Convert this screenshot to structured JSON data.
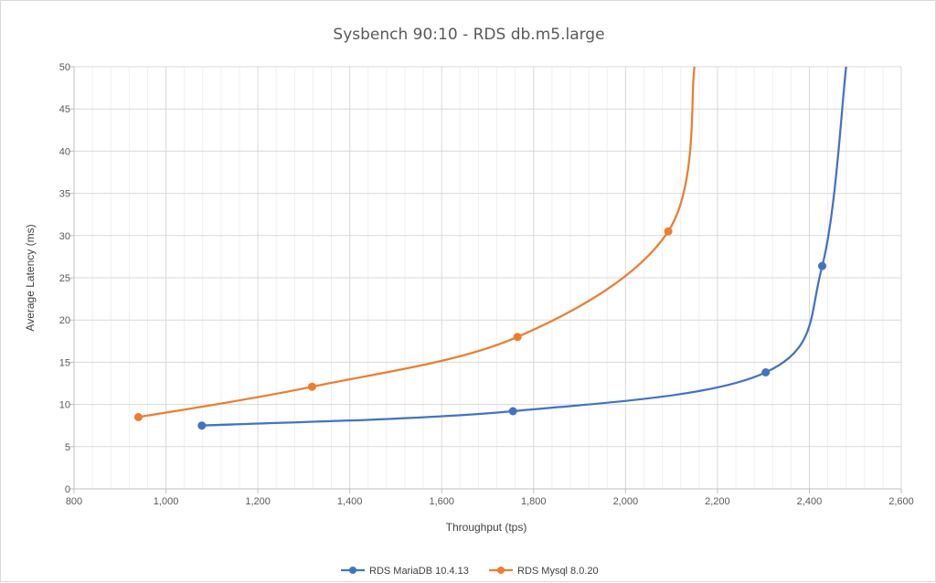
{
  "chart_data": {
    "type": "scatter",
    "title": "Sysbench 90:10 - RDS db.m5.large",
    "xlabel": "Throughput (tps)",
    "ylabel": "Average Latency (ms)",
    "xlim": [
      800,
      2600
    ],
    "ylim": [
      0,
      50
    ],
    "xticks": [
      "800",
      "1,000",
      "1,200",
      "1,400",
      "1,600",
      "1,800",
      "2,000",
      "2,200",
      "2,400",
      "2,600"
    ],
    "yticks": [
      "0",
      "5",
      "10",
      "15",
      "20",
      "25",
      "30",
      "35",
      "40",
      "45",
      "50"
    ],
    "grid": true,
    "minor_grid": true,
    "smooth_lines": true,
    "legend_position": "bottom",
    "series": [
      {
        "name": "RDS MariaDB 10.4.13",
        "color": "#4472C4",
        "points": [
          [
            1078,
            7.5
          ],
          [
            1755,
            9.2
          ],
          [
            2305,
            13.8
          ],
          [
            2428,
            26.4
          ],
          [
            2480,
            50
          ]
        ],
        "markers": [
          true,
          true,
          true,
          true,
          false
        ]
      },
      {
        "name": "RDS Mysql 8.0.20",
        "color": "#ED7D31",
        "points": [
          [
            940,
            8.5
          ],
          [
            1318,
            12.1
          ],
          [
            1765,
            18.0
          ],
          [
            2093,
            30.5
          ],
          [
            2150,
            50
          ]
        ],
        "markers": [
          true,
          true,
          true,
          true,
          false
        ]
      }
    ]
  }
}
